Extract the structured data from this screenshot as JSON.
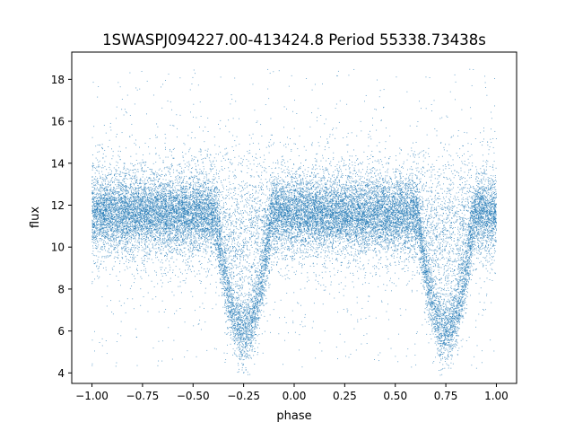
{
  "chart_data": {
    "type": "scatter",
    "title": "1SWASPJ094227.00-413424.8 Period 55338.73438s",
    "xlabel": "phase",
    "ylabel": "flux",
    "xlim": [
      -1.1,
      1.1
    ],
    "ylim": [
      3.5,
      19.3
    ],
    "x_ticks": [
      -1.0,
      -0.75,
      -0.5,
      -0.25,
      0.0,
      0.25,
      0.5,
      0.75,
      1.0
    ],
    "x_tick_labels": [
      "−1.00",
      "−0.75",
      "−0.50",
      "−0.25",
      "0.00",
      "0.25",
      "0.50",
      "0.75",
      "1.00"
    ],
    "y_ticks": [
      4,
      6,
      8,
      10,
      12,
      14,
      16,
      18
    ],
    "y_tick_labels": [
      "4",
      "6",
      "8",
      "10",
      "12",
      "14",
      "16",
      "18"
    ],
    "grid": false,
    "legend": "none",
    "marker_color": "#1f77b4",
    "phase_range": [
      -1.0,
      1.0
    ],
    "baseline_flux": 11.6,
    "baseline_scatter": 0.75,
    "eclipse_minima": [
      {
        "phase": -0.25,
        "flux": 6.0,
        "half_width": 0.14
      },
      {
        "phase": 0.75,
        "flux": 6.0,
        "half_width": 0.14
      }
    ],
    "outlier_range": [
      4.2,
      18.5
    ],
    "approx_point_count": 60000
  }
}
